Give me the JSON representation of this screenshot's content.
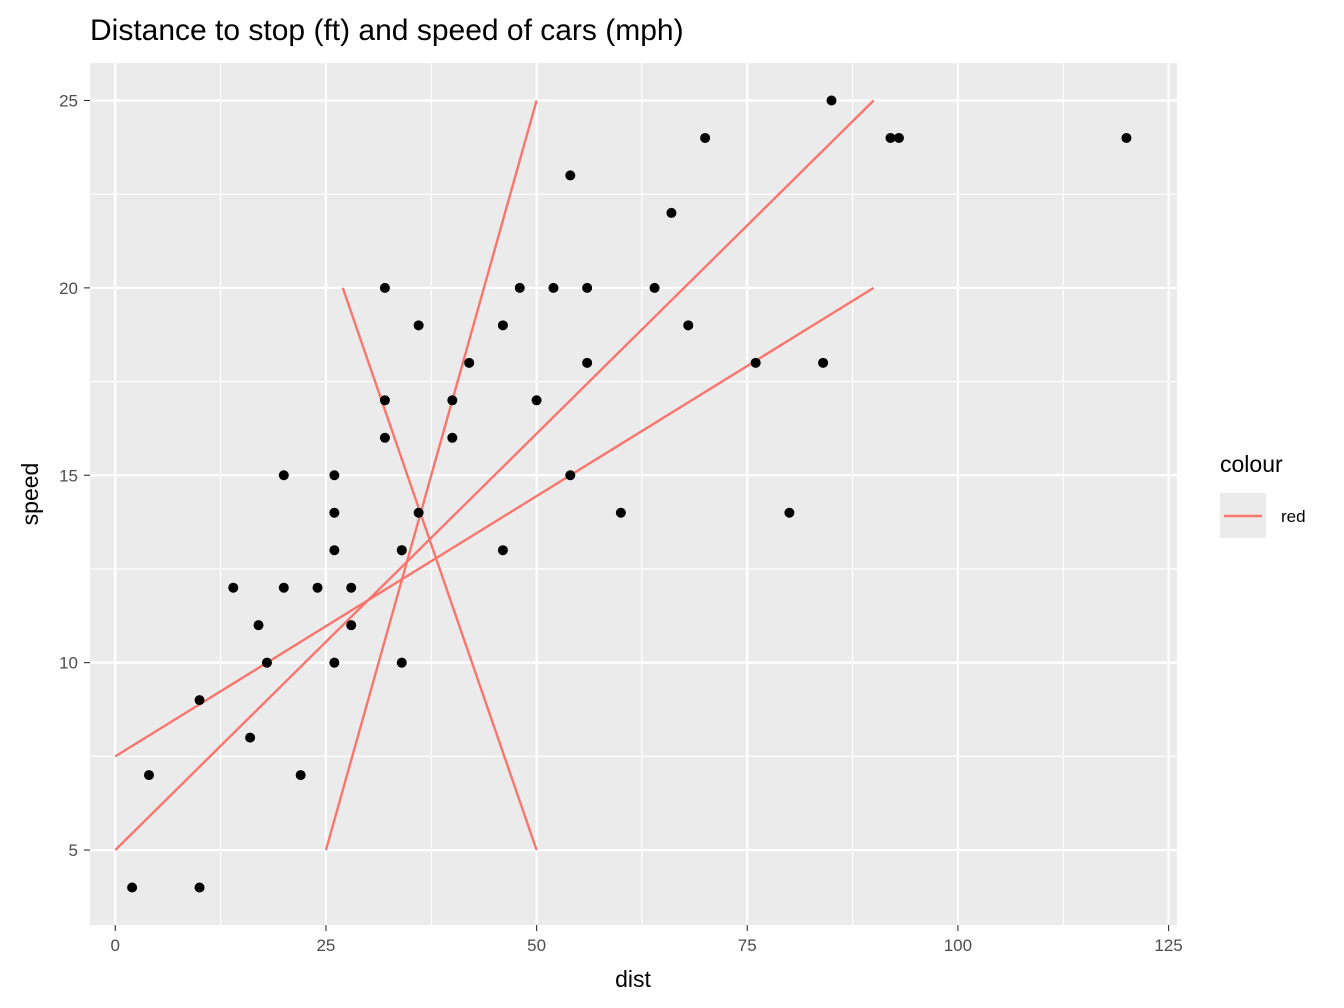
{
  "chart_data": {
    "type": "scatter",
    "title": "Distance to stop (ft) and speed of cars (mph)",
    "xlabel": "dist",
    "ylabel": "speed",
    "xlim": [
      -3,
      126
    ],
    "ylim": [
      3,
      26
    ],
    "x_ticks": [
      0,
      25,
      50,
      75,
      100,
      125
    ],
    "y_ticks": [
      5,
      10,
      15,
      20,
      25
    ],
    "x_tick_labels": [
      "0",
      "25",
      "50",
      "75",
      "100",
      "125"
    ],
    "y_tick_labels": [
      "5",
      "10",
      "15",
      "20",
      "25"
    ],
    "grid": true,
    "points": [
      {
        "x": 2,
        "y": 4
      },
      {
        "x": 10,
        "y": 4
      },
      {
        "x": 4,
        "y": 7
      },
      {
        "x": 22,
        "y": 7
      },
      {
        "x": 16,
        "y": 8
      },
      {
        "x": 10,
        "y": 9
      },
      {
        "x": 18,
        "y": 10
      },
      {
        "x": 26,
        "y": 10
      },
      {
        "x": 34,
        "y": 10
      },
      {
        "x": 17,
        "y": 11
      },
      {
        "x": 28,
        "y": 11
      },
      {
        "x": 14,
        "y": 12
      },
      {
        "x": 20,
        "y": 12
      },
      {
        "x": 24,
        "y": 12
      },
      {
        "x": 28,
        "y": 12
      },
      {
        "x": 26,
        "y": 13
      },
      {
        "x": 34,
        "y": 13
      },
      {
        "x": 34,
        "y": 13
      },
      {
        "x": 46,
        "y": 13
      },
      {
        "x": 26,
        "y": 14
      },
      {
        "x": 36,
        "y": 14
      },
      {
        "x": 60,
        "y": 14
      },
      {
        "x": 80,
        "y": 14
      },
      {
        "x": 20,
        "y": 15
      },
      {
        "x": 26,
        "y": 15
      },
      {
        "x": 54,
        "y": 15
      },
      {
        "x": 32,
        "y": 16
      },
      {
        "x": 40,
        "y": 16
      },
      {
        "x": 32,
        "y": 17
      },
      {
        "x": 40,
        "y": 17
      },
      {
        "x": 50,
        "y": 17
      },
      {
        "x": 42,
        "y": 18
      },
      {
        "x": 56,
        "y": 18
      },
      {
        "x": 76,
        "y": 18
      },
      {
        "x": 84,
        "y": 18
      },
      {
        "x": 36,
        "y": 19
      },
      {
        "x": 46,
        "y": 19
      },
      {
        "x": 68,
        "y": 19
      },
      {
        "x": 32,
        "y": 20
      },
      {
        "x": 48,
        "y": 20
      },
      {
        "x": 52,
        "y": 20
      },
      {
        "x": 56,
        "y": 20
      },
      {
        "x": 64,
        "y": 20
      },
      {
        "x": 66,
        "y": 22
      },
      {
        "x": 54,
        "y": 23
      },
      {
        "x": 70,
        "y": 24
      },
      {
        "x": 92,
        "y": 24
      },
      {
        "x": 93,
        "y": 24
      },
      {
        "x": 120,
        "y": 24
      },
      {
        "x": 85,
        "y": 25
      }
    ],
    "segments": [
      {
        "x1": 0,
        "y1": 7.5,
        "x2": 90,
        "y2": 20
      },
      {
        "x1": 0,
        "y1": 5,
        "x2": 90,
        "y2": 25
      },
      {
        "x1": 25,
        "y1": 5,
        "x2": 50,
        "y2": 25
      },
      {
        "x1": 27,
        "y1": 20,
        "x2": 50,
        "y2": 5
      }
    ],
    "legend": {
      "title": "colour",
      "position": "right",
      "items": [
        {
          "label": "red",
          "color": "#F8766D"
        }
      ]
    },
    "colors": {
      "panel": "#EBEBEB",
      "grid": "#FFFFFF",
      "points": "#000000",
      "line": "#F8766D"
    }
  }
}
